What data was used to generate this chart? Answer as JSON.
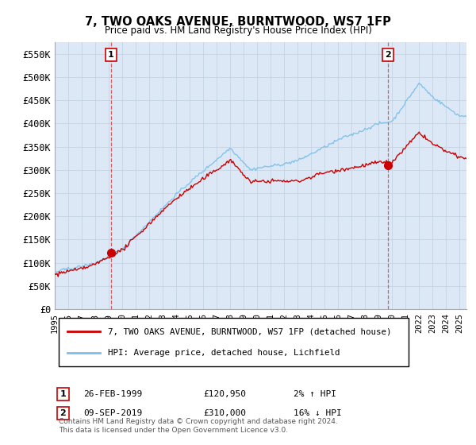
{
  "title": "7, TWO OAKS AVENUE, BURNTWOOD, WS7 1FP",
  "subtitle": "Price paid vs. HM Land Registry's House Price Index (HPI)",
  "ylabel_ticks": [
    "£0",
    "£50K",
    "£100K",
    "£150K",
    "£200K",
    "£250K",
    "£300K",
    "£350K",
    "£400K",
    "£450K",
    "£500K",
    "£550K"
  ],
  "ytick_values": [
    0,
    50000,
    100000,
    150000,
    200000,
    250000,
    300000,
    350000,
    400000,
    450000,
    500000,
    550000
  ],
  "ylim": [
    0,
    575000
  ],
  "xlim_start": 1995.0,
  "xlim_end": 2025.5,
  "hpi_color": "#7bbfea",
  "price_color": "#cc0000",
  "plot_bg_color": "#dce8f5",
  "marker1_x": 1999.15,
  "marker1_y": 120950,
  "marker2_x": 2019.69,
  "marker2_y": 310000,
  "legend_line1": "7, TWO OAKS AVENUE, BURNTWOOD, WS7 1FP (detached house)",
  "legend_line2": "HPI: Average price, detached house, Lichfield",
  "ann1_label": "1",
  "ann1_date": "26-FEB-1999",
  "ann1_price": "£120,950",
  "ann1_hpi": "2% ↑ HPI",
  "ann2_label": "2",
  "ann2_date": "09-SEP-2019",
  "ann2_price": "£310,000",
  "ann2_hpi": "16% ↓ HPI",
  "footer": "Contains HM Land Registry data © Crown copyright and database right 2024.\nThis data is licensed under the Open Government Licence v3.0.",
  "bg_color": "#ffffff",
  "grid_color": "#c0d0e0"
}
